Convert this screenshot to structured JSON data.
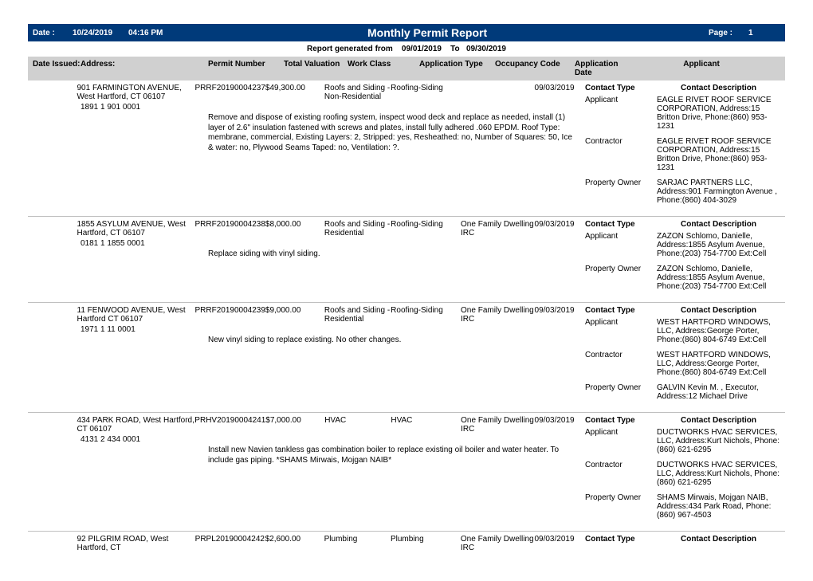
{
  "header": {
    "date_label": "Date :",
    "date": "10/24/2019",
    "time": "04:16 PM",
    "title": "Monthly Permit Report",
    "page_label": "Page :",
    "page": "1"
  },
  "subheader": {
    "prefix": "Report generated from",
    "from": "09/01/2019",
    "to_label": "To",
    "to": "09/30/2019"
  },
  "col_headers": {
    "date_issued": "Date Issued:",
    "address": "Address:",
    "permit_number": "Permit Number",
    "total_valuation": "Total Valuation",
    "work_class": "Work Class",
    "application_type": "Application Type",
    "occupancy_code": "Occupancy Code",
    "application_date": "Application Date",
    "applicant": "Applicant"
  },
  "contact_headers": {
    "contact_type": "Contact Type",
    "contact_description": "Contact Description"
  },
  "records": [
    {
      "address": "901 FARMINGTON AVENUE, West Hartford, CT 06107",
      "permit_number": "PRRF20190004237",
      "valuation": "$49,300.00",
      "work_class": "Roofs and Siding - Non-Residential",
      "application_type": "Roofing-Siding",
      "occupancy_code": "",
      "application_date": "09/03/2019",
      "parcel": "1891 1 901 0001",
      "notes": "Remove and dispose of existing roofing system, inspect wood deck and replace as needed, install (1) layer of 2.6\" insulation fastened with screws and plates, install fully adhered .060 EPDM.\nRoof Type: membrane, commercial, Existing Layers: 2, Stripped: yes, Resheathed: no, Number of Squares: 50, Ice & water: no, Plywood Seams Taped: no, Ventilation: ?.",
      "contacts": [
        {
          "type": "Applicant",
          "desc": "EAGLE RIVET ROOF SERVICE CORPORATION, Address:15 Britton Drive, Phone:(860) 953-1231"
        },
        {
          "type": "Contractor",
          "desc": "EAGLE RIVET ROOF SERVICE CORPORATION, Address:15 Britton Drive, Phone:(860) 953-1231"
        },
        {
          "type": "Property Owner",
          "desc": "SARJAC PARTNERS LLC, Address:901 Farmington Avenue , Phone:(860) 404-3029"
        }
      ]
    },
    {
      "address": "1855 ASYLUM AVENUE, West Hartford, CT 06107",
      "permit_number": "PRRF20190004238",
      "valuation": "$8,000.00",
      "work_class": "Roofs and Siding - Residential",
      "application_type": "Roofing-Siding",
      "occupancy_code": "One Family Dwelling  IRC",
      "application_date": "09/03/2019",
      "parcel": "0181 1 1855 0001",
      "notes": "Replace siding with vinyl siding.",
      "contacts": [
        {
          "type": "Applicant",
          "desc": "ZAZON  Schlomo, Danielle, Address:1855 Asylum Avenue, Phone:(203) 754-7700 Ext:Cell"
        },
        {
          "type": "Property Owner",
          "desc": "ZAZON  Schlomo, Danielle, Address:1855 Asylum Avenue, Phone:(203) 754-7700 Ext:Cell"
        }
      ]
    },
    {
      "address": "11 FENWOOD AVENUE, West Hartford CT 06107",
      "permit_number": "PRRF20190004239",
      "valuation": "$9,000.00",
      "work_class": "Roofs and Siding - Residential",
      "application_type": "Roofing-Siding",
      "occupancy_code": "One Family Dwelling  IRC",
      "application_date": "09/03/2019",
      "parcel": "1971 1 11 0001",
      "notes": "New vinyl siding to replace existing. No other changes.",
      "contacts": [
        {
          "type": "Applicant",
          "desc": "WEST HARTFORD WINDOWS, LLC, Address:George Porter, Phone:(860) 804-6749 Ext:Cell"
        },
        {
          "type": "Contractor",
          "desc": "WEST HARTFORD WINDOWS, LLC, Address:George Porter, Phone:(860) 804-6749 Ext:Cell"
        },
        {
          "type": "Property Owner",
          "desc": "GALVIN  Kevin M. , Executor, Address:12 Michael Drive"
        }
      ]
    },
    {
      "address": "434 PARK ROAD, West Hartford, CT 06107",
      "permit_number": "PRHV20190004241",
      "valuation": "$7,000.00",
      "work_class": "HVAC",
      "application_type": "HVAC",
      "occupancy_code": "One Family Dwelling  IRC",
      "application_date": "09/03/2019",
      "parcel": "4131 2 434 0001",
      "notes": "Install new Navien tankless gas combination boiler to replace existing oil boiler and water heater. To include gas piping. *SHAMS Mirwais, Mojgan NAIB*",
      "contacts": [
        {
          "type": "Applicant",
          "desc": "DUCTWORKS HVAC SERVICES, LLC, Address:Kurt Nichols, Phone:(860) 621-6295"
        },
        {
          "type": "Contractor",
          "desc": "DUCTWORKS HVAC SERVICES, LLC, Address:Kurt Nichols, Phone:(860) 621-6295"
        },
        {
          "type": "Property Owner",
          "desc": "SHAMS  Mirwais, Mojgan  NAIB, Address:434 Park Road, Phone:(860) 967-4503"
        }
      ]
    },
    {
      "address": "92 PILGRIM ROAD, West Hartford, CT",
      "permit_number": "PRPL20190004242",
      "valuation": "$2,600.00",
      "work_class": "Plumbing",
      "application_type": "Plumbing",
      "occupancy_code": "One Family Dwelling  IRC",
      "application_date": "09/03/2019",
      "parcel": "",
      "notes": "",
      "contacts": []
    }
  ]
}
